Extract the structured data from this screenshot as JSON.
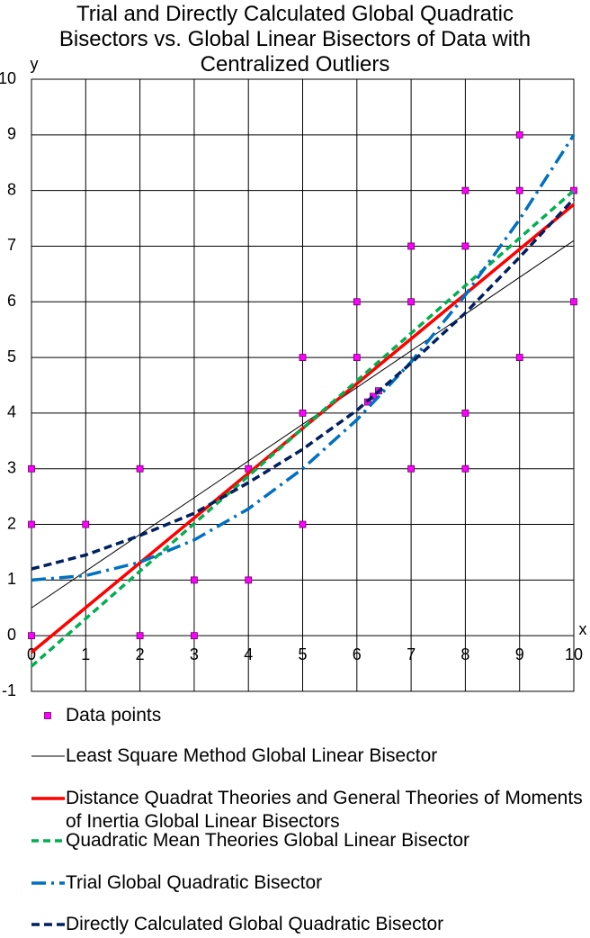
{
  "chart_data": {
    "type": "combo",
    "title": "Trial and Directly Calculated Global Quadratic Bisectors vs. Global Linear Bisectors of Data with Centralized Outliers",
    "x_label": "x",
    "y_label": "y",
    "xlim": [
      0,
      10
    ],
    "ylim": [
      -1,
      10
    ],
    "xticks": [
      0,
      1,
      2,
      3,
      4,
      5,
      6,
      7,
      8,
      9,
      10
    ],
    "yticks": [
      -1,
      0,
      1,
      2,
      3,
      4,
      5,
      6,
      7,
      8,
      9,
      10
    ],
    "grid": true,
    "legend": "bottom",
    "series": [
      {
        "name": "Data points",
        "type": "scatter",
        "color": "#ff00ff",
        "x": [
          0,
          0,
          0,
          1,
          2,
          2,
          3,
          3,
          4,
          4,
          5,
          5,
          5,
          6,
          6,
          6.2,
          6.3,
          6.4,
          7,
          7,
          7,
          8,
          8,
          8,
          8,
          9,
          9,
          9,
          10,
          10
        ],
        "values": [
          0,
          2,
          3,
          2,
          0,
          3,
          0,
          1,
          1,
          3,
          2,
          4,
          5,
          5,
          6,
          4.2,
          4.3,
          4.4,
          3,
          6,
          7,
          3,
          4,
          7,
          8,
          5,
          8,
          9,
          6,
          8
        ]
      },
      {
        "name": "Least Square Method Global Linear Bisector",
        "type": "line",
        "color": "#000000",
        "dash": "none",
        "width": 1,
        "x": [
          0,
          10
        ],
        "values": [
          0.5,
          7.1
        ]
      },
      {
        "name": "Distance Quadrat Theories and General Theories of Moments of Inertia Global Linear Bisectors",
        "type": "line",
        "color": "#ff0000",
        "dash": "none",
        "width": 3.5,
        "x": [
          0,
          10
        ],
        "values": [
          -0.3,
          7.75
        ]
      },
      {
        "name": "Quadratic Mean Theories Global Linear Bisector",
        "type": "line",
        "color": "#00b050",
        "dash": "8 5",
        "width": 3.5,
        "x": [
          0,
          10
        ],
        "values": [
          -0.55,
          8
        ]
      },
      {
        "name": "Trial Global Quadratic Bisector",
        "type": "line",
        "color": "#0070c0",
        "dash": "16 6 3 6",
        "width": 3.5,
        "x": [
          0,
          1,
          2,
          3,
          4,
          5,
          6,
          7,
          8,
          9,
          10
        ],
        "values": [
          1,
          1.08,
          1.32,
          1.72,
          2.28,
          3,
          3.88,
          4.92,
          6.12,
          7.48,
          9
        ]
      },
      {
        "name": "Directly Calculated Global Quadratic Bisector",
        "type": "line",
        "color": "#002060",
        "dash": "9 5",
        "width": 3.5,
        "x": [
          0,
          1,
          2,
          3,
          4,
          5,
          6,
          7,
          8,
          9,
          10
        ],
        "values": [
          1.2,
          1.45,
          1.8,
          2.2,
          2.75,
          3.35,
          4.05,
          4.9,
          5.8,
          6.8,
          7.85
        ]
      }
    ]
  }
}
